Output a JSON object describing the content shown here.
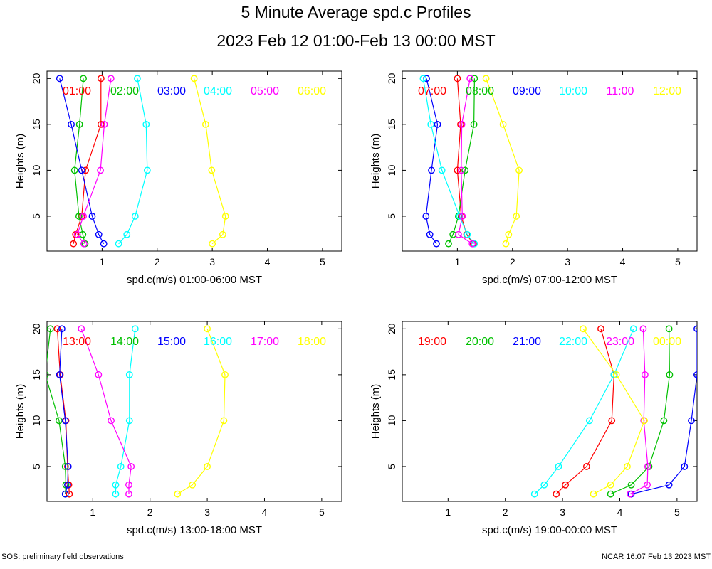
{
  "title": "5 Minute Average spd.c Profiles",
  "subtitle": "2023 Feb 12 01:00-Feb 13 00:00 MST",
  "footer_left": "SOS: preliminary field observations",
  "footer_right": "NCAR 16:07 Feb 13 2023 MST",
  "chart_data": [
    {
      "type": "line",
      "xlabel": "spd.c(m/s) 01:00-06:00 MST",
      "ylabel": "Heights (m)",
      "xlim": [
        0.0,
        5.35
      ],
      "ylim": [
        1.2,
        20.8
      ],
      "xticks": [
        1,
        2,
        3,
        4,
        5
      ],
      "yticks": [
        5,
        10,
        15,
        20
      ],
      "heights": [
        2,
        3,
        5,
        10,
        15,
        20
      ],
      "series": [
        {
          "name": "01:00",
          "color": "#ff0000",
          "values": [
            0.48,
            0.52,
            0.63,
            0.7,
            0.98,
            0.98
          ]
        },
        {
          "name": "02:00",
          "color": "#00c000",
          "values": [
            0.69,
            0.65,
            0.58,
            0.5,
            0.59,
            0.66
          ]
        },
        {
          "name": "03:00",
          "color": "#0000ff",
          "values": [
            1.03,
            0.94,
            0.82,
            0.63,
            0.44,
            0.23
          ]
        },
        {
          "name": "04:00",
          "color": "#00ffff",
          "values": [
            1.3,
            1.45,
            1.6,
            1.82,
            1.8,
            1.64
          ]
        },
        {
          "name": "05:00",
          "color": "#ff00ff",
          "values": [
            0.67,
            0.55,
            0.66,
            0.97,
            1.04,
            1.16
          ]
        },
        {
          "name": "06:00",
          "color": "#ffff00",
          "values": [
            3.0,
            3.19,
            3.24,
            2.99,
            2.88,
            2.67
          ]
        }
      ]
    },
    {
      "type": "line",
      "xlabel": "spd.c(m/s) 07:00-12:00 MST",
      "ylabel": "Heights (m)",
      "xlim": [
        0.0,
        5.35
      ],
      "ylim": [
        1.2,
        20.8
      ],
      "xticks": [
        1,
        2,
        3,
        4,
        5
      ],
      "yticks": [
        5,
        10,
        15,
        20
      ],
      "heights": [
        2,
        3,
        5,
        10,
        15,
        20
      ],
      "series": [
        {
          "name": "07:00",
          "color": "#ff0000",
          "values": [
            1.29,
            1.17,
            1.07,
            1.0,
            1.06,
            1.0
          ]
        },
        {
          "name": "08:00",
          "color": "#00c000",
          "values": [
            0.84,
            0.92,
            1.02,
            1.14,
            1.3,
            1.31
          ]
        },
        {
          "name": "09:00",
          "color": "#0000ff",
          "values": [
            0.62,
            0.5,
            0.43,
            0.53,
            0.64,
            0.44
          ]
        },
        {
          "name": "10:00",
          "color": "#00ffff",
          "values": [
            1.31,
            1.18,
            1.04,
            0.72,
            0.52,
            0.38
          ]
        },
        {
          "name": "11:00",
          "color": "#ff00ff",
          "values": [
            1.27,
            1.02,
            1.09,
            1.07,
            1.08,
            1.23
          ]
        },
        {
          "name": "12:00",
          "color": "#ffff00",
          "values": [
            1.88,
            1.93,
            2.07,
            2.12,
            1.83,
            1.52
          ]
        }
      ]
    },
    {
      "type": "line",
      "xlabel": "spd.c(m/s) 13:00-18:00 MST",
      "ylabel": "Heights (m)",
      "xlim": [
        0.2,
        5.35
      ],
      "ylim": [
        1.2,
        20.8
      ],
      "xticks": [
        1,
        2,
        3,
        4,
        5
      ],
      "yticks": [
        5,
        10,
        15,
        20
      ],
      "heights": [
        2,
        3,
        5,
        10,
        15,
        20
      ],
      "series": [
        {
          "name": "13:00",
          "color": "#ff0000",
          "values": [
            0.59,
            0.58,
            0.56,
            0.53,
            0.43,
            0.38
          ]
        },
        {
          "name": "14:00",
          "color": "#00c000",
          "values": [
            0.52,
            0.53,
            0.52,
            0.41,
            0.17,
            0.26
          ]
        },
        {
          "name": "15:00",
          "color": "#0000ff",
          "values": [
            0.52,
            0.56,
            0.57,
            0.52,
            0.42,
            0.46
          ]
        },
        {
          "name": "16:00",
          "color": "#00ffff",
          "values": [
            1.4,
            1.4,
            1.49,
            1.64,
            1.64,
            1.74
          ]
        },
        {
          "name": "17:00",
          "color": "#ff00ff",
          "values": [
            1.63,
            1.63,
            1.67,
            1.32,
            1.1,
            0.8
          ]
        },
        {
          "name": "18:00",
          "color": "#ffff00",
          "values": [
            2.48,
            2.74,
            3.0,
            3.29,
            3.31,
            3.0
          ]
        }
      ]
    },
    {
      "type": "line",
      "xlabel": "spd.c(m/s) 19:00-00:00 MST",
      "ylabel": "Heights (m)",
      "xlim": [
        0.2,
        5.35
      ],
      "ylim": [
        1.2,
        20.8
      ],
      "xticks": [
        1,
        2,
        3,
        4,
        5
      ],
      "yticks": [
        5,
        10,
        15,
        20
      ],
      "heights": [
        2,
        3,
        5,
        10,
        15,
        20
      ],
      "series": [
        {
          "name": "19:00",
          "color": "#ff0000",
          "values": [
            2.89,
            3.05,
            3.42,
            3.86,
            3.9,
            3.67
          ]
        },
        {
          "name": "20:00",
          "color": "#00c000",
          "values": [
            3.84,
            4.2,
            4.51,
            4.77,
            4.87,
            4.86
          ]
        },
        {
          "name": "21:00",
          "color": "#0000ff",
          "values": [
            4.2,
            4.86,
            5.13,
            5.25,
            5.35,
            5.35
          ]
        },
        {
          "name": "22:00",
          "color": "#00ffff",
          "values": [
            2.51,
            2.68,
            2.93,
            3.47,
            3.9,
            4.24
          ]
        },
        {
          "name": "23:00",
          "color": "#ff00ff",
          "values": [
            4.18,
            4.48,
            4.49,
            4.42,
            4.44,
            4.41
          ]
        },
        {
          "name": "00:00",
          "color": "#ffff00",
          "values": [
            3.54,
            3.84,
            4.13,
            4.43,
            3.94,
            3.36
          ]
        }
      ]
    }
  ]
}
